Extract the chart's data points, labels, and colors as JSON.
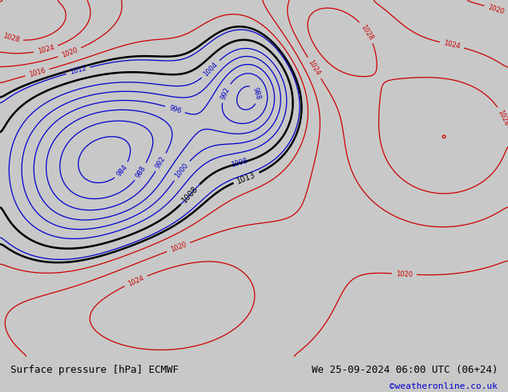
{
  "title_left": "Surface pressure [hPa] ECMWF",
  "title_right": "We 25-09-2024 06:00 UTC (06+24)",
  "watermark": "©weatheronline.co.uk",
  "ocean_color": "#e8e8e8",
  "land_color": "#b8d8a0",
  "land_color2": "#c8e8b0",
  "bottom_bar_color": "#c8c8c8",
  "text_color_left": "#000000",
  "text_color_right": "#000000",
  "watermark_color": "#0000cc",
  "font_size_bottom": 9,
  "font_size_watermark": 8,
  "lon_min": -30,
  "lon_max": 50,
  "lat_min": 23,
  "lat_max": 75
}
